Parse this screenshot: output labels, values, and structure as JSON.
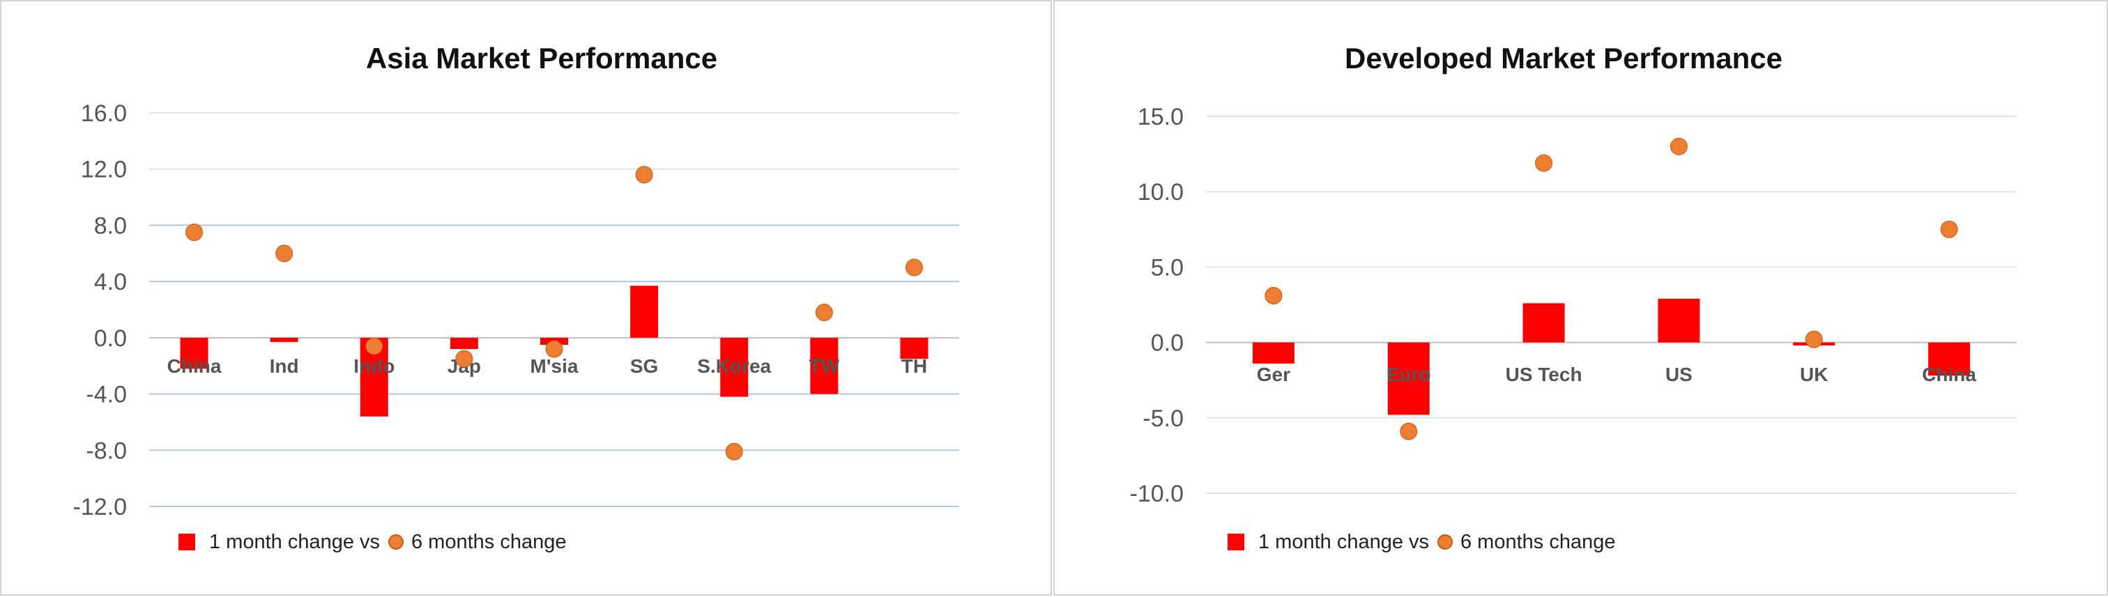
{
  "colors": {
    "bar": "#ff0000",
    "dot": "#ed7d31",
    "dot_stroke": "#c55a11",
    "grid_light": "#e3e3e3",
    "grid_blue": "#b4c7e7",
    "zero_line": "#bfbfbf"
  },
  "chart_data": [
    {
      "type": "bar",
      "title": "Asia Market Performance",
      "categories": [
        "China",
        "Ind",
        "Indo",
        "Jap",
        "M'sia",
        "SG",
        "S.Korea",
        "TW",
        "TH"
      ],
      "series": [
        {
          "name": "1 month change vs",
          "type": "bar",
          "values": [
            -2.2,
            -0.3,
            -5.6,
            -0.8,
            -0.5,
            3.7,
            -4.2,
            -4.0,
            -1.5
          ]
        },
        {
          "name": "6 months change",
          "type": "scatter",
          "values": [
            7.5,
            6.0,
            -0.6,
            -1.5,
            -0.8,
            11.6,
            -8.1,
            1.8,
            5.0
          ]
        }
      ],
      "yticks": [
        "16.0",
        "12.0",
        "8.0",
        "4.0",
        "0.0",
        "-4.0",
        "-8.0",
        "-12.0"
      ],
      "ylim": [
        -12,
        16
      ],
      "grid": true,
      "legend": "bottom-left"
    },
    {
      "type": "bar",
      "title": "Developed Market Performance",
      "categories": [
        "Ger",
        "Euro",
        "US Tech",
        "US",
        "UK",
        "China"
      ],
      "series": [
        {
          "name": "1 month change vs",
          "type": "bar",
          "values": [
            -1.4,
            -4.8,
            2.6,
            2.9,
            -0.2,
            -2.2
          ]
        },
        {
          "name": "6 months change",
          "type": "scatter",
          "values": [
            3.1,
            -5.9,
            11.9,
            13.0,
            0.2,
            7.5
          ]
        }
      ],
      "yticks": [
        "15.0",
        "10.0",
        "5.0",
        "0.0",
        "-5.0",
        "-10.0"
      ],
      "ylim": [
        -10,
        15
      ],
      "grid": true,
      "legend": "bottom-left"
    }
  ]
}
